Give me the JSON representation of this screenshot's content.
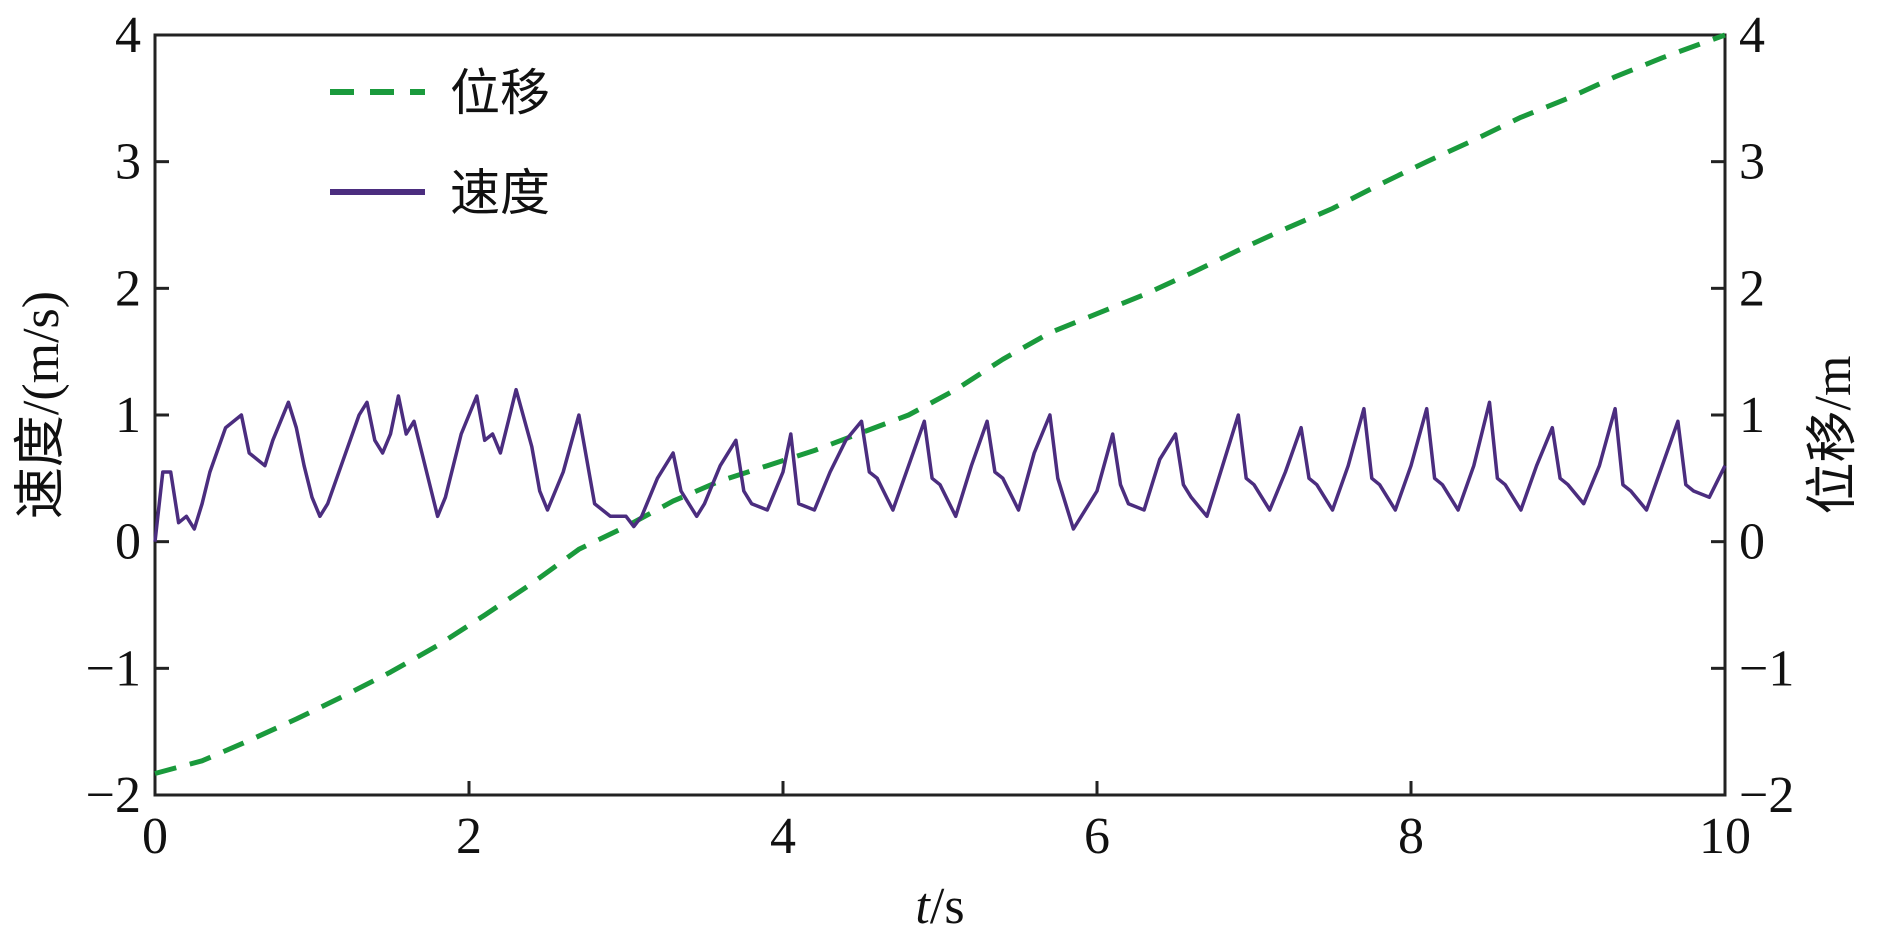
{
  "chart_data": {
    "type": "line",
    "x_label": {
      "italic": "t",
      "rest": "/s"
    },
    "y_left_label": "速度/(m/s)",
    "y_right_label": "位移/m",
    "xlim": [
      0,
      10
    ],
    "ylim_left": [
      -2,
      4
    ],
    "ylim_right": [
      -2,
      4
    ],
    "x_ticks": [
      "0",
      "2",
      "4",
      "6",
      "8",
      "10"
    ],
    "y_ticks": [
      "−2",
      "−1",
      "0",
      "1",
      "2",
      "3",
      "4"
    ],
    "legend_position": "top-left",
    "series": [
      {
        "name": "位移",
        "axis": "right",
        "color": "#1a9a3c",
        "style": "dashed",
        "x": [
          0,
          0.3,
          0.6,
          0.9,
          1.2,
          1.5,
          1.8,
          2.1,
          2.4,
          2.7,
          3.0,
          3.3,
          3.6,
          3.9,
          4.2,
          4.5,
          4.8,
          5.1,
          5.4,
          5.7,
          6.0,
          6.3,
          6.6,
          6.9,
          7.2,
          7.5,
          7.8,
          8.1,
          8.4,
          8.7,
          9.0,
          9.3,
          9.6,
          10.0
        ],
        "values": [
          -1.83,
          -1.73,
          -1.57,
          -1.4,
          -1.22,
          -1.03,
          -0.82,
          -0.58,
          -0.33,
          -0.06,
          0.12,
          0.32,
          0.48,
          0.6,
          0.72,
          0.86,
          1.0,
          1.2,
          1.44,
          1.65,
          1.8,
          1.95,
          2.12,
          2.3,
          2.47,
          2.63,
          2.82,
          3.0,
          3.17,
          3.35,
          3.5,
          3.67,
          3.82,
          4.0
        ]
      },
      {
        "name": "速度",
        "axis": "left",
        "color": "#4b2d7f",
        "style": "solid",
        "x": [
          0,
          0.05,
          0.1,
          0.15,
          0.2,
          0.25,
          0.3,
          0.35,
          0.45,
          0.55,
          0.6,
          0.62,
          0.7,
          0.75,
          0.85,
          0.9,
          0.95,
          1.0,
          1.05,
          1.1,
          1.2,
          1.3,
          1.35,
          1.4,
          1.45,
          1.5,
          1.55,
          1.6,
          1.65,
          1.7,
          1.8,
          1.85,
          1.9,
          1.95,
          2.05,
          2.1,
          2.15,
          2.2,
          2.25,
          2.3,
          2.4,
          2.45,
          2.5,
          2.6,
          2.7,
          2.8,
          2.9,
          3.0,
          3.05,
          3.1,
          3.2,
          3.3,
          3.35,
          3.4,
          3.45,
          3.5,
          3.6,
          3.7,
          3.75,
          3.8,
          3.9,
          4.0,
          4.05,
          4.1,
          4.2,
          4.3,
          4.4,
          4.5,
          4.55,
          4.6,
          4.7,
          4.8,
          4.9,
          4.95,
          5.0,
          5.1,
          5.2,
          5.3,
          5.35,
          5.4,
          5.5,
          5.6,
          5.7,
          5.75,
          5.8,
          5.85,
          5.9,
          6.0,
          6.1,
          6.15,
          6.2,
          6.3,
          6.4,
          6.5,
          6.55,
          6.6,
          6.7,
          6.8,
          6.9,
          6.95,
          7.0,
          7.1,
          7.2,
          7.3,
          7.35,
          7.4,
          7.5,
          7.6,
          7.7,
          7.75,
          7.8,
          7.9,
          8.0,
          8.1,
          8.15,
          8.2,
          8.3,
          8.4,
          8.5,
          8.55,
          8.6,
          8.7,
          8.8,
          8.9,
          8.95,
          9.0,
          9.1,
          9.2,
          9.3,
          9.35,
          9.4,
          9.5,
          9.6,
          9.7,
          9.75,
          9.8,
          9.9,
          10.0
        ],
        "values": [
          0.0,
          0.55,
          0.55,
          0.15,
          0.2,
          0.1,
          0.3,
          0.55,
          0.9,
          1.0,
          0.7,
          0.68,
          0.6,
          0.8,
          1.1,
          0.9,
          0.6,
          0.35,
          0.2,
          0.3,
          0.65,
          1.0,
          1.1,
          0.8,
          0.7,
          0.85,
          1.15,
          0.85,
          0.95,
          0.7,
          0.2,
          0.35,
          0.6,
          0.85,
          1.15,
          0.8,
          0.85,
          0.7,
          0.95,
          1.2,
          0.75,
          0.4,
          0.25,
          0.55,
          1.0,
          0.3,
          0.2,
          0.2,
          0.12,
          0.2,
          0.5,
          0.7,
          0.4,
          0.3,
          0.2,
          0.3,
          0.6,
          0.8,
          0.4,
          0.3,
          0.25,
          0.55,
          0.85,
          0.3,
          0.25,
          0.55,
          0.8,
          0.95,
          0.55,
          0.5,
          0.25,
          0.6,
          0.95,
          0.5,
          0.45,
          0.2,
          0.6,
          0.95,
          0.55,
          0.5,
          0.25,
          0.7,
          1.0,
          0.5,
          0.3,
          0.1,
          0.2,
          0.4,
          0.85,
          0.45,
          0.3,
          0.25,
          0.65,
          0.85,
          0.45,
          0.35,
          0.2,
          0.6,
          1.0,
          0.5,
          0.45,
          0.25,
          0.55,
          0.9,
          0.5,
          0.45,
          0.25,
          0.6,
          1.05,
          0.5,
          0.45,
          0.25,
          0.6,
          1.05,
          0.5,
          0.45,
          0.25,
          0.6,
          1.1,
          0.5,
          0.45,
          0.25,
          0.6,
          0.9,
          0.5,
          0.45,
          0.3,
          0.6,
          1.05,
          0.45,
          0.4,
          0.25,
          0.6,
          0.95,
          0.45,
          0.4,
          0.35,
          0.6
        ]
      }
    ]
  }
}
